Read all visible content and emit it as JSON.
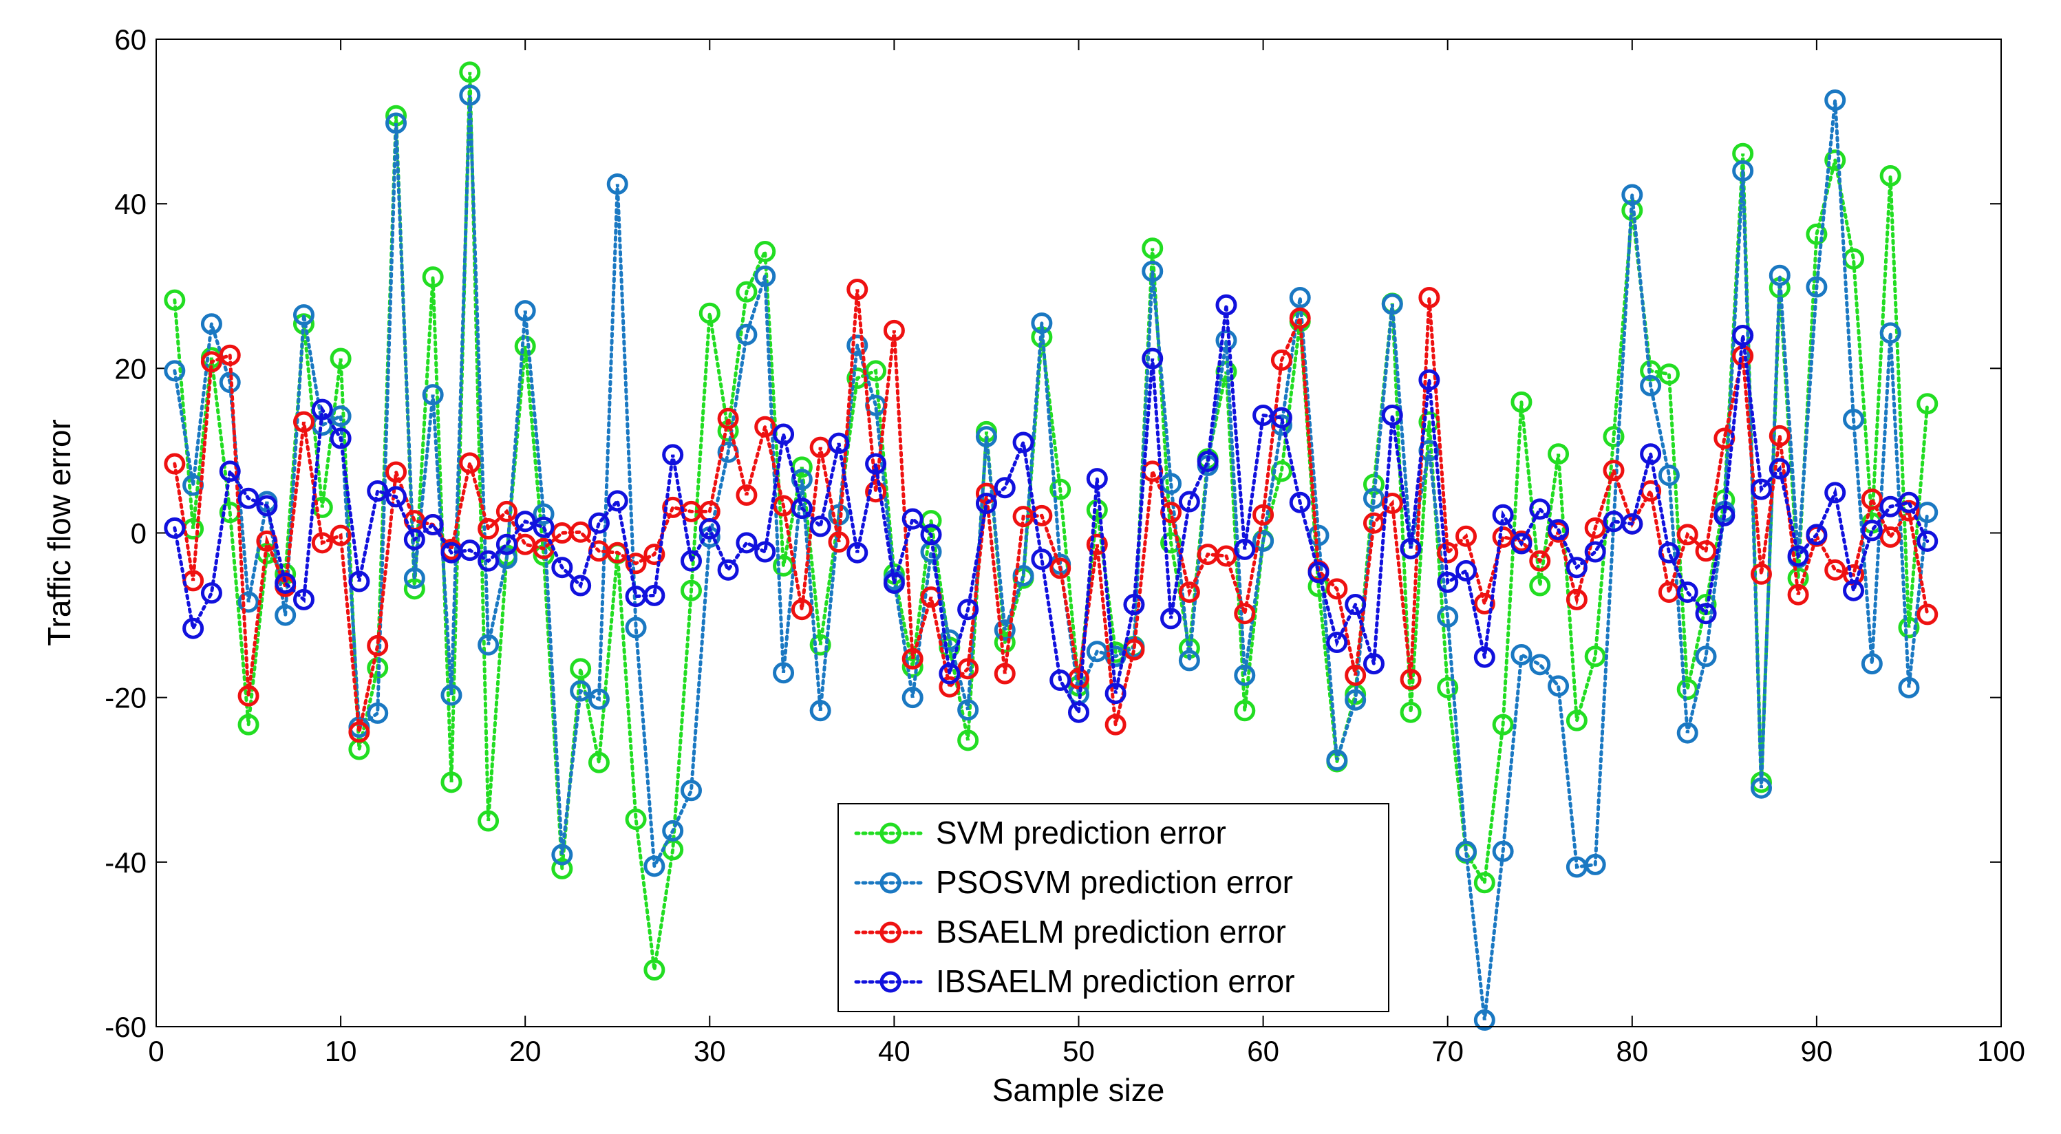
{
  "chart_data": {
    "type": "line",
    "title": "",
    "xlabel": "Sample size",
    "ylabel": "Traffic flow error",
    "xlim": [
      0,
      100
    ],
    "ylim": [
      -60,
      60
    ],
    "xticks": [
      0,
      10,
      20,
      30,
      40,
      50,
      60,
      70,
      80,
      90,
      100
    ],
    "yticks": [
      -60,
      -40,
      -20,
      0,
      20,
      40,
      60
    ],
    "legend_position": "bottom-center",
    "series": [
      {
        "name": "SVM prediction error",
        "color": "#22dd22",
        "x": [
          1,
          2,
          3,
          4,
          5,
          6,
          7,
          8,
          9,
          10,
          11,
          12,
          13,
          14,
          15,
          16,
          17,
          18,
          19,
          20,
          21,
          22,
          23,
          24,
          25,
          26,
          27,
          28,
          29,
          30,
          31,
          32,
          33,
          34,
          35,
          36,
          37,
          38,
          39,
          40,
          41,
          42,
          43,
          44,
          45,
          46,
          47,
          48,
          49,
          50,
          51,
          52,
          53,
          54,
          55,
          56,
          57,
          58,
          59,
          60,
          61,
          62,
          63,
          64,
          65,
          66,
          67,
          68,
          69,
          70,
          71,
          72,
          73,
          74,
          75,
          76,
          77,
          78,
          79,
          80,
          81,
          82,
          83,
          84,
          85,
          86,
          87,
          88,
          89,
          90,
          91,
          92,
          93,
          94,
          95,
          96
        ],
        "values": [
          28.3,
          0.5,
          21.3,
          2.5,
          -23.3,
          -2.5,
          -5,
          25.4,
          3.1,
          21.2,
          -26.3,
          -16.4,
          50.7,
          -6.8,
          31.1,
          -30.3,
          56,
          -35,
          -2.7,
          22.7,
          -2.7,
          -40.8,
          -16.5,
          -27.9,
          -2.5,
          -34.8,
          -53.1,
          -38.5,
          -7,
          26.7,
          12.4,
          29.3,
          34.2,
          -4,
          8,
          -13.6,
          2.2,
          18.8,
          19.7,
          -5,
          -16.3,
          1.5,
          -13.9,
          -25.2,
          12.3,
          -13.3,
          -5.5,
          23.8,
          5.3,
          -18.6,
          2.8,
          -14.5,
          -13.8,
          34.6,
          -1.2,
          -14,
          9,
          19.6,
          -21.6,
          -0.9,
          7.5,
          25.7,
          -6.5,
          -27.8,
          -19.6,
          5.9,
          27.9,
          -21.8,
          13.5,
          -18.8,
          -38.9,
          -42.5,
          -23.3,
          15.9,
          -6.4,
          9.6,
          -22.8,
          -15,
          11.7,
          39.2,
          19.7,
          19.3,
          -19,
          -8.7,
          4,
          46.1,
          -30.3,
          29.8,
          -5.5,
          36.3,
          45.3,
          33.3,
          1.2,
          43.4,
          -11.5,
          15.7
        ]
      },
      {
        "name": "PSOSVM prediction error",
        "color": "#1a78c2",
        "x": [
          1,
          2,
          3,
          4,
          5,
          6,
          7,
          8,
          9,
          10,
          11,
          12,
          13,
          14,
          15,
          16,
          17,
          18,
          19,
          20,
          21,
          22,
          23,
          24,
          25,
          26,
          27,
          28,
          29,
          30,
          31,
          32,
          33,
          34,
          35,
          36,
          37,
          38,
          39,
          40,
          41,
          42,
          43,
          44,
          45,
          46,
          47,
          48,
          49,
          50,
          51,
          52,
          53,
          54,
          55,
          56,
          57,
          58,
          59,
          60,
          61,
          62,
          63,
          64,
          65,
          66,
          67,
          68,
          69,
          70,
          71,
          72,
          73,
          74,
          75,
          76,
          77,
          78,
          79,
          80,
          81,
          82,
          83,
          84,
          85,
          86,
          87,
          88,
          89,
          90,
          91,
          92,
          93,
          94,
          95,
          96
        ],
        "values": [
          19.7,
          5.8,
          25.4,
          18.3,
          -8.4,
          3.8,
          -10,
          26.5,
          13.1,
          14.2,
          -23.6,
          -21.9,
          49.8,
          -5.5,
          16.8,
          -19.7,
          53.2,
          -13.6,
          -3.1,
          27,
          2.3,
          -39.1,
          -19.2,
          -20.2,
          42.4,
          -11.5,
          -40.5,
          -36.2,
          -31.3,
          -0.5,
          9.8,
          24.1,
          31.2,
          -17,
          6.5,
          -21.6,
          2.2,
          22.8,
          15.5,
          -5.7,
          -20,
          -2.3,
          -13,
          -21.5,
          11.7,
          -11.8,
          -5.2,
          25.5,
          -3.8,
          -19.6,
          -14.4,
          -15,
          -13.9,
          31.8,
          6,
          -15.5,
          8.2,
          23.4,
          -17.3,
          -1,
          13.1,
          28.6,
          -0.3,
          -27.6,
          -20.3,
          4.2,
          27.8,
          -1.9,
          10,
          -10.2,
          -38.7,
          -59.2,
          -38.7,
          -14.8,
          -16,
          -18.6,
          -40.6,
          -40.3,
          1.4,
          41.1,
          17.9,
          7,
          -24.3,
          -15,
          2.6,
          44,
          -31,
          31.3,
          -3,
          29.9,
          52.6,
          13.8,
          -15.9,
          24.3,
          -18.8,
          2.5
        ]
      },
      {
        "name": "BSAELM prediction error",
        "color": "#ee1111",
        "x": [
          1,
          2,
          3,
          4,
          5,
          6,
          7,
          8,
          9,
          10,
          11,
          12,
          13,
          14,
          15,
          16,
          17,
          18,
          19,
          20,
          21,
          22,
          23,
          24,
          25,
          26,
          27,
          28,
          29,
          30,
          31,
          32,
          33,
          34,
          35,
          36,
          37,
          38,
          39,
          40,
          41,
          42,
          43,
          44,
          45,
          46,
          47,
          48,
          49,
          50,
          51,
          52,
          53,
          54,
          55,
          56,
          57,
          58,
          59,
          60,
          61,
          62,
          63,
          64,
          65,
          66,
          67,
          68,
          69,
          70,
          71,
          72,
          73,
          74,
          75,
          76,
          77,
          78,
          79,
          80,
          81,
          82,
          83,
          84,
          85,
          86,
          87,
          88,
          89,
          90,
          91,
          92,
          93,
          94,
          95,
          96
        ],
        "values": [
          8.4,
          -5.8,
          20.8,
          21.6,
          -19.8,
          -1,
          -6.5,
          13.5,
          -1.2,
          -0.3,
          -24.2,
          -13.7,
          7.4,
          1.5,
          1,
          -2,
          8.5,
          0.5,
          2.6,
          -1.4,
          -1.9,
          0,
          0.1,
          -2.2,
          -2.4,
          -3.7,
          -2.6,
          3.1,
          2.6,
          2.6,
          13.9,
          4.6,
          12.9,
          3.3,
          -9.3,
          10.4,
          -1.1,
          29.6,
          5,
          24.6,
          -15.3,
          -7.8,
          -18.7,
          -16.5,
          4.8,
          -17.1,
          2,
          2.1,
          -4.3,
          -17.7,
          -1.4,
          -23.3,
          -14.2,
          7.5,
          2.5,
          -7.2,
          -2.6,
          -2.8,
          -9.8,
          2.2,
          21,
          26.1,
          -4.6,
          -6.8,
          -17.3,
          1.2,
          3.6,
          -17.8,
          28.6,
          -2.4,
          -0.4,
          -8.6,
          -0.5,
          -1,
          -3.4,
          0.1,
          -8.1,
          0.6,
          7.6,
          1.1,
          5.1,
          -7.2,
          -0.2,
          -2.2,
          11.5,
          21.5,
          -5,
          11.8,
          -7.5,
          -0.4,
          -4.5,
          -5.1,
          4.1,
          -0.5,
          2.7,
          -9.9
        ]
      },
      {
        "name": "IBSAELM prediction error",
        "color": "#1111dd",
        "x": [
          1,
          2,
          3,
          4,
          5,
          6,
          7,
          8,
          9,
          10,
          11,
          12,
          13,
          14,
          15,
          16,
          17,
          18,
          19,
          20,
          21,
          22,
          23,
          24,
          25,
          26,
          27,
          28,
          29,
          30,
          31,
          32,
          33,
          34,
          35,
          36,
          37,
          38,
          39,
          40,
          41,
          42,
          43,
          44,
          45,
          46,
          47,
          48,
          49,
          50,
          51,
          52,
          53,
          54,
          55,
          56,
          57,
          58,
          59,
          60,
          61,
          62,
          63,
          64,
          65,
          66,
          67,
          68,
          69,
          70,
          71,
          72,
          73,
          74,
          75,
          76,
          77,
          78,
          79,
          80,
          81,
          82,
          83,
          84,
          85,
          86,
          87,
          88,
          89,
          90,
          91,
          92,
          93,
          94,
          95,
          96
        ],
        "values": [
          0.6,
          -11.6,
          -7.3,
          7.5,
          4.2,
          3.3,
          -6.1,
          -8.1,
          15,
          11.5,
          -5.9,
          5.1,
          4.4,
          -0.8,
          1,
          -2.4,
          -2.1,
          -3.4,
          -1.4,
          1.4,
          0.7,
          -4.2,
          -6.4,
          1.2,
          3.9,
          -7.7,
          -7.6,
          9.5,
          -3.4,
          0.5,
          -4.5,
          -1.2,
          -2.3,
          12,
          3,
          0.8,
          10.9,
          -2.4,
          8.4,
          -6.1,
          1.7,
          -0.2,
          -17.1,
          -9.3,
          3.6,
          5.5,
          11,
          -3.2,
          -17.9,
          -21.8,
          6.6,
          -19.5,
          -8.7,
          21.2,
          -10.4,
          3.8,
          8.7,
          27.7,
          -2,
          14.3,
          14,
          3.7,
          -4.8,
          -13.3,
          -8.7,
          -15.9,
          14.3,
          -1.9,
          18.6,
          -6,
          -4.6,
          -15.1,
          2.2,
          -1.3,
          2.9,
          0.4,
          -4.2,
          -2.3,
          1.4,
          1.1,
          9.6,
          -2.4,
          -7.2,
          -9.8,
          2.1,
          24,
          5.3,
          7.8,
          -2.8,
          -0.2,
          4.9,
          -7,
          0.3,
          3.2,
          3.7,
          -1
        ]
      }
    ]
  }
}
